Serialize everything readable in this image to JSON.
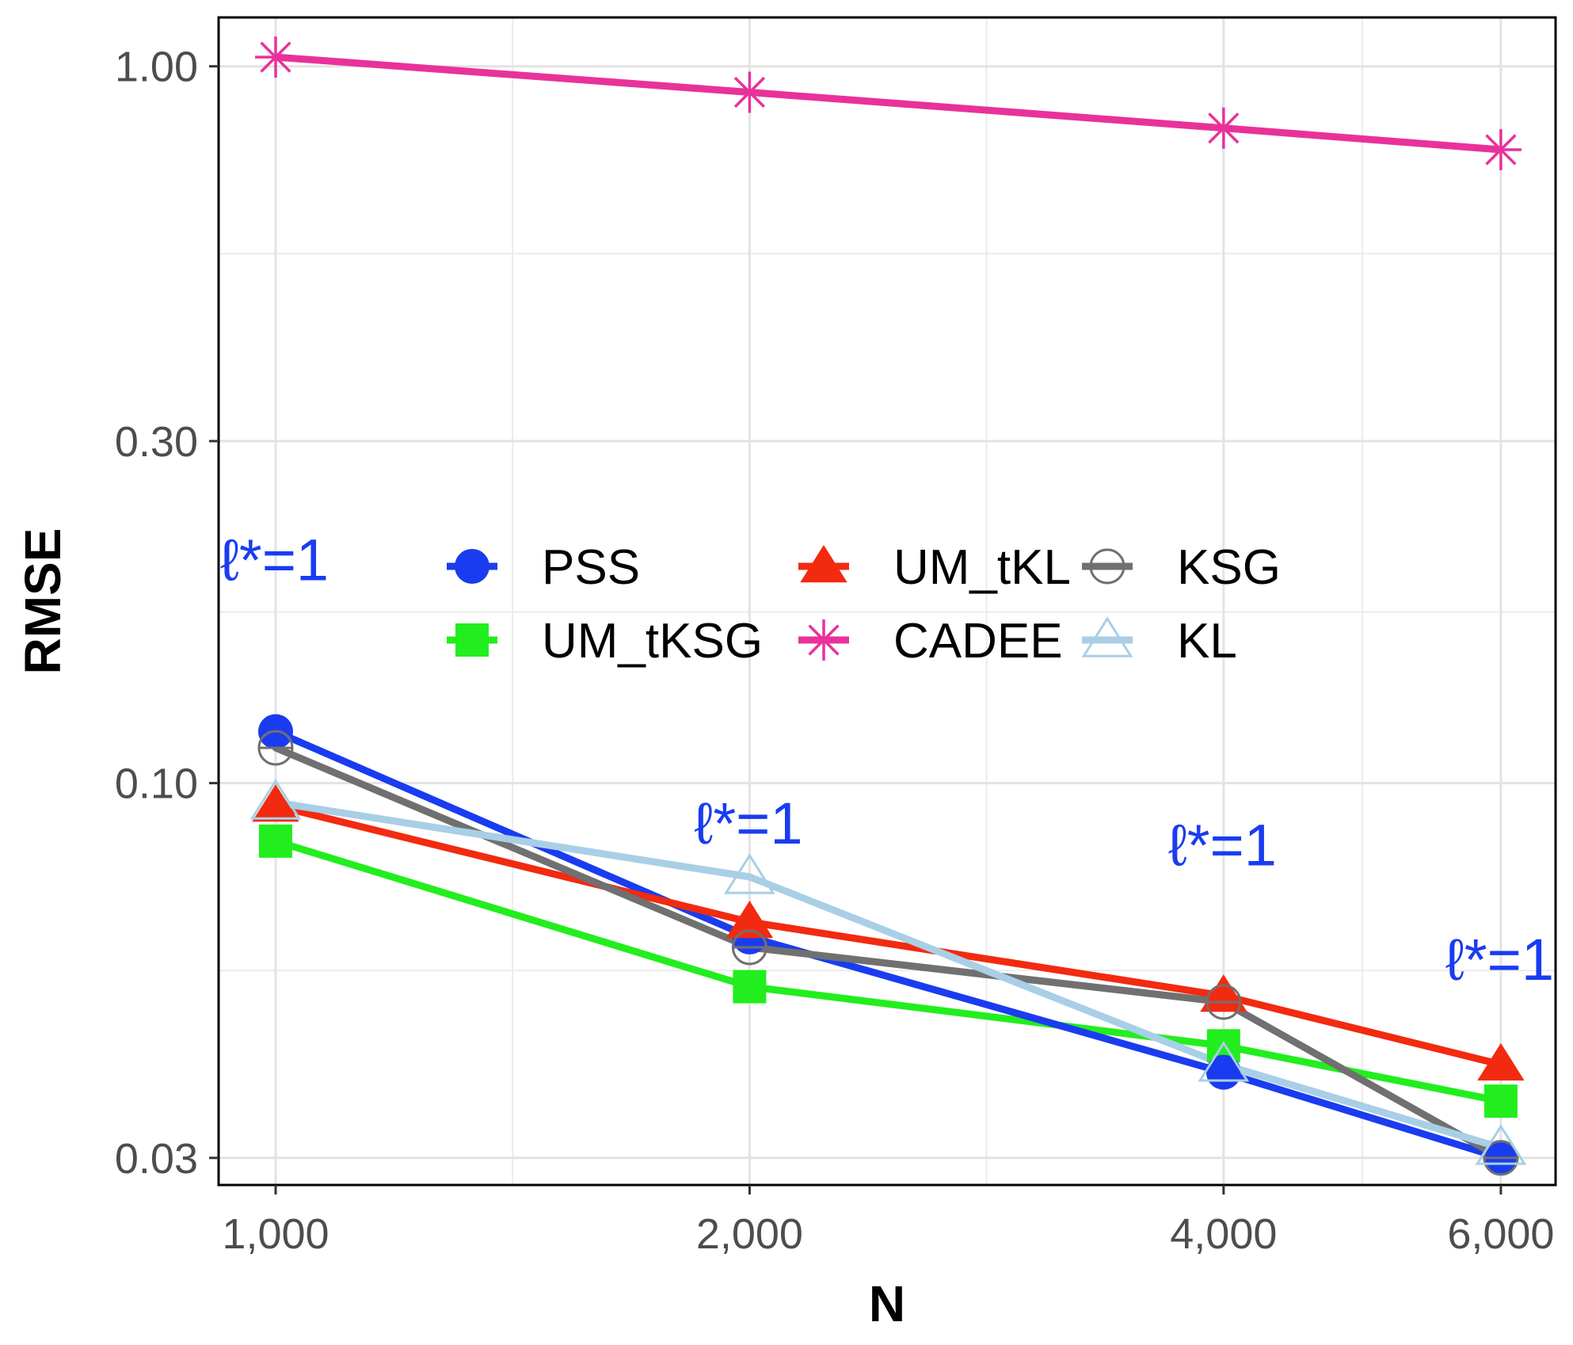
{
  "chart_data": {
    "type": "line",
    "title": "",
    "xlabel": "N",
    "ylabel": "RMSE",
    "x_scale": "log",
    "y_scale": "log",
    "x": [
      1000,
      2000,
      4000,
      6000
    ],
    "x_tick_values": [
      1000,
      2000,
      4000,
      6000
    ],
    "x_tick_labels": [
      "1,000",
      "2,000",
      "4,000",
      "6,000"
    ],
    "y_tick_values": [
      0.03,
      0.1,
      0.3,
      1.0
    ],
    "y_tick_labels": [
      "0.03",
      "0.10",
      "0.30",
      "1.00"
    ],
    "xlim": [
      920,
      6500
    ],
    "ylim": [
      0.0275,
      1.17
    ],
    "grid": true,
    "legend_position": "center",
    "series": [
      {
        "name": "PSS",
        "color": "#1a3cf0",
        "marker": "circle",
        "values": [
          0.118,
          0.061,
          0.0395,
          0.03
        ]
      },
      {
        "name": "UM_tKSG",
        "color": "#22ee1e",
        "marker": "square",
        "values": [
          0.083,
          0.052,
          0.043,
          0.036
        ]
      },
      {
        "name": "UM_tKL",
        "color": "#f22a10",
        "marker": "triangle",
        "values": [
          0.093,
          0.064,
          0.0505,
          0.0405
        ]
      },
      {
        "name": "CADEE",
        "color": "#e8329a",
        "marker": "asterisk",
        "values": [
          1.03,
          0.92,
          0.82,
          0.765
        ]
      },
      {
        "name": "KSG",
        "color": "#707070",
        "marker": "circle-open",
        "values": [
          0.112,
          0.059,
          0.0495,
          0.03
        ]
      },
      {
        "name": "KL",
        "color": "#a8cfe6",
        "marker": "triangle-open",
        "values": [
          0.094,
          0.074,
          0.0405,
          0.031
        ]
      }
    ],
    "annotations": [
      {
        "text": "ℓ*=1",
        "x": 1000,
        "y": 0.205
      },
      {
        "text": "ℓ*=1",
        "x": 2000,
        "y": 0.088
      },
      {
        "text": "ℓ*=1",
        "x": 4000,
        "y": 0.082
      },
      {
        "text": "ℓ*=1",
        "x": 6000,
        "y": 0.0568
      }
    ]
  }
}
